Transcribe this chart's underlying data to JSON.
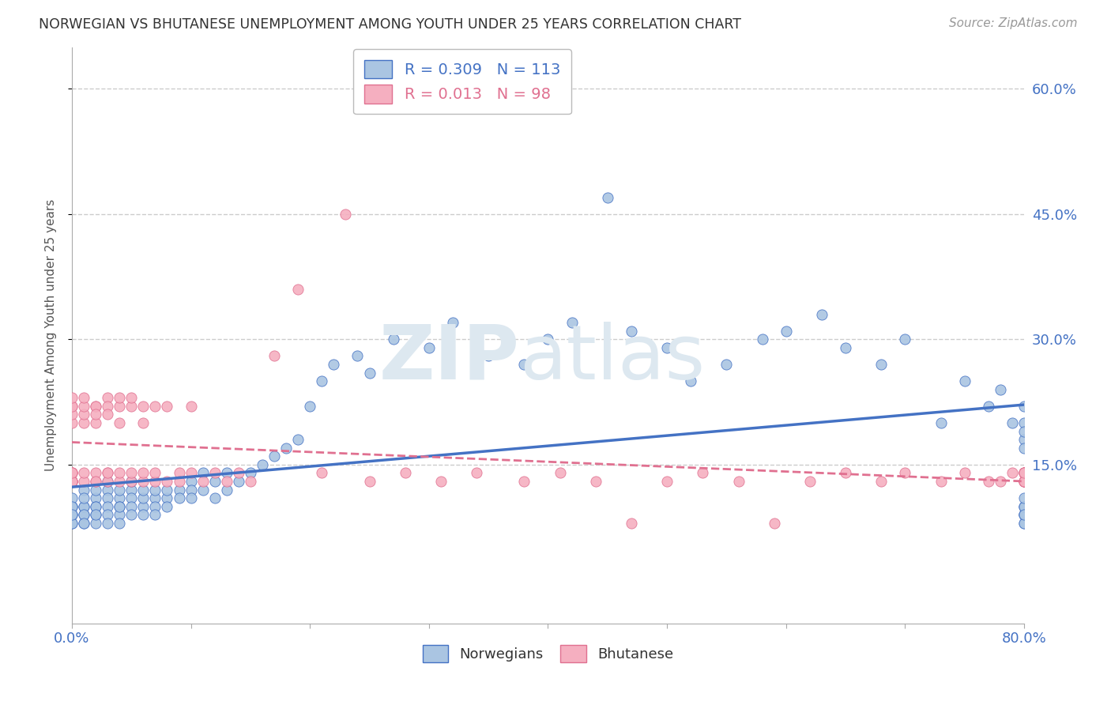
{
  "title": "NORWEGIAN VS BHUTANESE UNEMPLOYMENT AMONG YOUTH UNDER 25 YEARS CORRELATION CHART",
  "source": "Source: ZipAtlas.com",
  "ylabel": "Unemployment Among Youth under 25 years",
  "xlim": [
    0.0,
    0.8
  ],
  "ylim": [
    -0.04,
    0.65
  ],
  "xticks": [
    0.0,
    0.1,
    0.2,
    0.3,
    0.4,
    0.5,
    0.6,
    0.7,
    0.8
  ],
  "xticklabels": [
    "0.0%",
    "",
    "",
    "",
    "",
    "",
    "",
    "",
    "80.0%"
  ],
  "ytick_positions": [
    0.15,
    0.3,
    0.45,
    0.6
  ],
  "ytick_labels": [
    "15.0%",
    "30.0%",
    "45.0%",
    "60.0%"
  ],
  "norwegian_R": 0.309,
  "norwegian_N": 113,
  "bhutanese_R": 0.013,
  "bhutanese_N": 98,
  "norwegian_color": "#aac5e2",
  "bhutanese_color": "#f5afc0",
  "norwegian_line_color": "#4472c4",
  "bhutanese_line_color": "#e07090",
  "background_color": "#ffffff",
  "grid_color": "#cccccc",
  "nor_x": [
    0.0,
    0.0,
    0.0,
    0.0,
    0.0,
    0.0,
    0.0,
    0.0,
    0.0,
    0.01,
    0.01,
    0.01,
    0.01,
    0.01,
    0.01,
    0.01,
    0.01,
    0.02,
    0.02,
    0.02,
    0.02,
    0.02,
    0.02,
    0.02,
    0.03,
    0.03,
    0.03,
    0.03,
    0.03,
    0.03,
    0.04,
    0.04,
    0.04,
    0.04,
    0.04,
    0.04,
    0.05,
    0.05,
    0.05,
    0.05,
    0.05,
    0.06,
    0.06,
    0.06,
    0.06,
    0.07,
    0.07,
    0.07,
    0.07,
    0.08,
    0.08,
    0.08,
    0.09,
    0.09,
    0.1,
    0.1,
    0.1,
    0.11,
    0.11,
    0.12,
    0.12,
    0.13,
    0.13,
    0.14,
    0.15,
    0.16,
    0.17,
    0.18,
    0.19,
    0.2,
    0.21,
    0.22,
    0.24,
    0.25,
    0.27,
    0.29,
    0.3,
    0.32,
    0.35,
    0.38,
    0.4,
    0.42,
    0.45,
    0.47,
    0.5,
    0.52,
    0.55,
    0.58,
    0.6,
    0.63,
    0.65,
    0.68,
    0.7,
    0.73,
    0.75,
    0.77,
    0.78,
    0.79,
    0.8,
    0.8,
    0.8,
    0.8,
    0.8,
    0.8,
    0.8,
    0.8,
    0.8,
    0.8,
    0.8,
    0.8,
    0.8,
    0.8,
    0.8
  ],
  "nor_y": [
    0.1,
    0.1,
    0.09,
    0.08,
    0.09,
    0.11,
    0.1,
    0.08,
    0.09,
    0.12,
    0.1,
    0.09,
    0.08,
    0.1,
    0.11,
    0.09,
    0.08,
    0.11,
    0.1,
    0.09,
    0.12,
    0.1,
    0.08,
    0.09,
    0.12,
    0.11,
    0.1,
    0.09,
    0.13,
    0.08,
    0.11,
    0.1,
    0.09,
    0.12,
    0.08,
    0.1,
    0.12,
    0.11,
    0.1,
    0.09,
    0.13,
    0.1,
    0.11,
    0.09,
    0.12,
    0.11,
    0.1,
    0.12,
    0.09,
    0.11,
    0.12,
    0.1,
    0.12,
    0.11,
    0.13,
    0.12,
    0.11,
    0.14,
    0.12,
    0.13,
    0.11,
    0.14,
    0.12,
    0.13,
    0.14,
    0.15,
    0.16,
    0.17,
    0.18,
    0.22,
    0.25,
    0.27,
    0.28,
    0.26,
    0.3,
    0.31,
    0.29,
    0.32,
    0.28,
    0.27,
    0.3,
    0.32,
    0.47,
    0.31,
    0.29,
    0.25,
    0.27,
    0.3,
    0.31,
    0.33,
    0.29,
    0.27,
    0.3,
    0.2,
    0.25,
    0.22,
    0.24,
    0.2,
    0.22,
    0.18,
    0.2,
    0.19,
    0.17,
    0.1,
    0.09,
    0.08,
    0.09,
    0.1,
    0.09,
    0.1,
    0.08,
    0.09,
    0.11
  ],
  "bhu_x": [
    0.0,
    0.0,
    0.0,
    0.0,
    0.0,
    0.0,
    0.0,
    0.0,
    0.0,
    0.0,
    0.0,
    0.0,
    0.0,
    0.0,
    0.0,
    0.01,
    0.01,
    0.01,
    0.01,
    0.01,
    0.01,
    0.02,
    0.02,
    0.02,
    0.02,
    0.02,
    0.02,
    0.02,
    0.03,
    0.03,
    0.03,
    0.03,
    0.03,
    0.03,
    0.04,
    0.04,
    0.04,
    0.04,
    0.04,
    0.05,
    0.05,
    0.05,
    0.05,
    0.06,
    0.06,
    0.06,
    0.06,
    0.07,
    0.07,
    0.07,
    0.08,
    0.08,
    0.09,
    0.09,
    0.1,
    0.1,
    0.11,
    0.12,
    0.13,
    0.14,
    0.15,
    0.17,
    0.19,
    0.21,
    0.23,
    0.25,
    0.28,
    0.31,
    0.34,
    0.38,
    0.41,
    0.44,
    0.47,
    0.5,
    0.53,
    0.56,
    0.59,
    0.62,
    0.65,
    0.68,
    0.7,
    0.73,
    0.75,
    0.77,
    0.78,
    0.79,
    0.8,
    0.8,
    0.8,
    0.8,
    0.8,
    0.8,
    0.8,
    0.8,
    0.8,
    0.8,
    0.8,
    0.8
  ],
  "bhu_y": [
    0.13,
    0.13,
    0.14,
    0.13,
    0.14,
    0.13,
    0.14,
    0.13,
    0.22,
    0.2,
    0.21,
    0.13,
    0.14,
    0.22,
    0.23,
    0.2,
    0.13,
    0.21,
    0.22,
    0.14,
    0.23,
    0.22,
    0.13,
    0.2,
    0.14,
    0.22,
    0.13,
    0.21,
    0.14,
    0.23,
    0.22,
    0.13,
    0.21,
    0.14,
    0.22,
    0.13,
    0.2,
    0.14,
    0.23,
    0.13,
    0.22,
    0.14,
    0.23,
    0.22,
    0.13,
    0.2,
    0.14,
    0.13,
    0.22,
    0.14,
    0.13,
    0.22,
    0.14,
    0.13,
    0.14,
    0.22,
    0.13,
    0.14,
    0.13,
    0.14,
    0.13,
    0.28,
    0.36,
    0.14,
    0.45,
    0.13,
    0.14,
    0.13,
    0.14,
    0.13,
    0.14,
    0.13,
    0.08,
    0.13,
    0.14,
    0.13,
    0.08,
    0.13,
    0.14,
    0.13,
    0.14,
    0.13,
    0.14,
    0.13,
    0.13,
    0.14,
    0.14,
    0.13,
    0.13,
    0.14,
    0.13,
    0.14,
    0.13,
    0.14,
    0.13,
    0.14,
    0.13,
    0.14
  ]
}
